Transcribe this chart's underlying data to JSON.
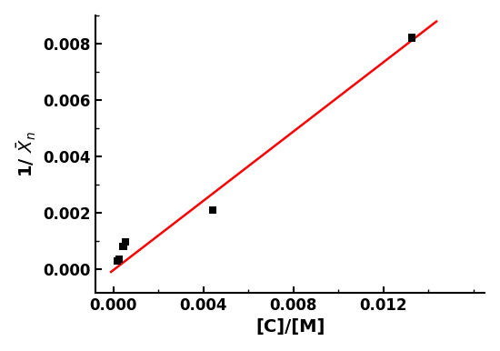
{
  "x_data": [
    0.000176,
    0.000264,
    0.00044,
    0.000528,
    0.004425,
    0.01325
  ],
  "y_data": [
    0.000278,
    0.000333,
    0.0008,
    0.000952,
    0.002083,
    0.008197
  ],
  "line_x": [
    -0.0001,
    0.01435
  ],
  "line_slope": 0.615,
  "line_intercept": -4.8e-05,
  "scatter_color": "#000000",
  "line_color": "#ff0000",
  "marker": "s",
  "marker_size": 6,
  "xlabel": "[C]/[M]",
  "ylabel": "1/ $\\mathregular{\\bar{X}_n}$",
  "xlim": [
    -0.0008,
    0.0165
  ],
  "ylim": [
    -0.00085,
    0.009
  ],
  "xticks": [
    0.0,
    0.004,
    0.008,
    0.012
  ],
  "yticks": [
    0.0,
    0.002,
    0.004,
    0.006,
    0.008
  ],
  "background_color": "#ffffff",
  "figsize": [
    5.5,
    3.86
  ],
  "dpi": 100,
  "tick_labelsize": 12,
  "label_fontsize": 14
}
